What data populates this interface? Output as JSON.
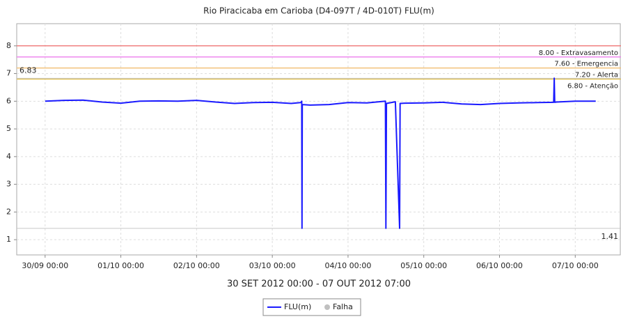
{
  "chart_data": {
    "type": "line",
    "title": "Rio Piracicaba em Carioba (D4-097T / 4D-010T) FLU(m)",
    "x_label": "30 SET 2012 00:00 - 07 OUT 2012 07:00",
    "xlim": [
      "2012-09-29T15:00",
      "2012-10-07T14:30"
    ],
    "xticks": [
      {
        "value": "2012-09-30T00:00",
        "label": "30/09 00:00"
      },
      {
        "value": "2012-10-01T00:00",
        "label": "01/10 00:00"
      },
      {
        "value": "2012-10-02T00:00",
        "label": "02/10 00:00"
      },
      {
        "value": "2012-10-03T00:00",
        "label": "03/10 00:00"
      },
      {
        "value": "2012-10-04T00:00",
        "label": "04/10 00:00"
      },
      {
        "value": "2012-10-05T00:00",
        "label": "05/10 00:00"
      },
      {
        "value": "2012-10-06T00:00",
        "label": "06/10 00:00"
      },
      {
        "value": "2012-10-07T00:00",
        "label": "07/10 00:00"
      }
    ],
    "ylim": [
      0.45,
      8.8
    ],
    "yticks": [
      1,
      2,
      3,
      4,
      5,
      6,
      7,
      8
    ],
    "grid": true,
    "x": [
      "2012-09-30T00:00",
      "2012-09-30T06:00",
      "2012-09-30T12:00",
      "2012-09-30T18:00",
      "2012-10-01T00:00",
      "2012-10-01T06:00",
      "2012-10-01T12:00",
      "2012-10-01T18:00",
      "2012-10-02T00:00",
      "2012-10-02T06:00",
      "2012-10-02T12:00",
      "2012-10-02T18:00",
      "2012-10-03T00:00",
      "2012-10-03T06:00",
      "2012-10-03T09:00",
      "2012-10-03T09:20",
      "2012-10-03T09:24",
      "2012-10-03T09:30",
      "2012-10-03T12:00",
      "2012-10-03T18:00",
      "2012-10-04T00:00",
      "2012-10-04T06:00",
      "2012-10-04T11:50",
      "2012-10-04T12:00",
      "2012-10-04T12:10",
      "2012-10-04T15:00",
      "2012-10-04T16:20",
      "2012-10-04T16:30",
      "2012-10-04T18:00",
      "2012-10-05T00:00",
      "2012-10-05T06:00",
      "2012-10-05T12:00",
      "2012-10-05T18:00",
      "2012-10-06T00:00",
      "2012-10-06T06:00",
      "2012-10-06T12:00",
      "2012-10-06T17:10",
      "2012-10-06T17:20",
      "2012-10-06T17:30",
      "2012-10-06T18:00",
      "2012-10-07T00:00",
      "2012-10-07T06:30"
    ],
    "series": [
      {
        "name": "FLU(m)",
        "color": "#1a1aff",
        "values": [
          6.0,
          6.03,
          6.04,
          5.97,
          5.93,
          6.0,
          6.01,
          6.0,
          6.03,
          5.97,
          5.92,
          5.95,
          5.96,
          5.92,
          5.95,
          6.0,
          1.41,
          5.88,
          5.86,
          5.88,
          5.95,
          5.94,
          6.0,
          1.41,
          5.92,
          5.98,
          1.41,
          5.92,
          5.93,
          5.94,
          5.96,
          5.9,
          5.88,
          5.92,
          5.94,
          5.95,
          5.96,
          6.83,
          5.96,
          5.97,
          6.0,
          6.0
        ]
      }
    ],
    "failure_legend": {
      "name": "Falha",
      "color": "#c0c0c0"
    },
    "thresholds": [
      {
        "value": 8.0,
        "label": "8.00 - Extravasamento",
        "color": "#f08080"
      },
      {
        "value": 7.6,
        "label": "7.60 - Emergencia",
        "color": "#ee88ee"
      },
      {
        "value": 7.2,
        "label": "7.20 - Alerta",
        "color": "#f2c27a"
      },
      {
        "value": 6.8,
        "label": "6.80 - Atenção",
        "color": "#e0c050"
      }
    ],
    "max_marker": 6.83,
    "min_marker": 1.41,
    "marker_color": "#c8c8c8"
  }
}
